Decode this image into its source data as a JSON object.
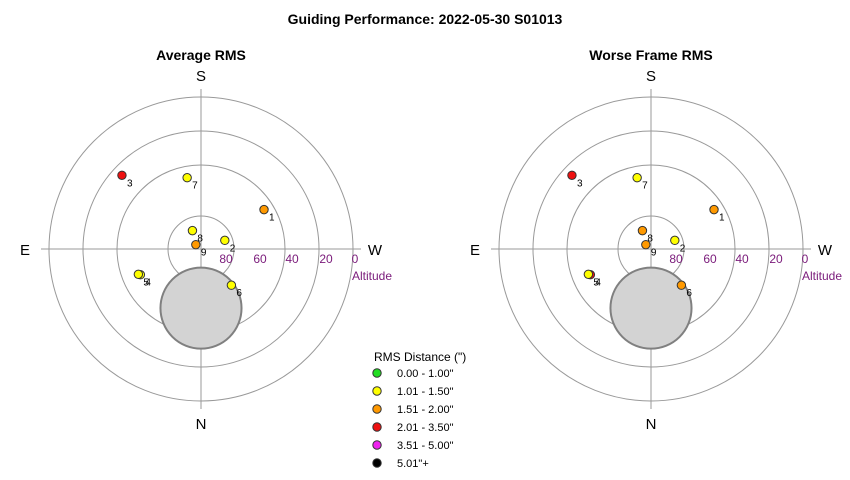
{
  "title": "Guiding Performance: 2022-05-30 S01013",
  "colors": {
    "0.00 - 1.00\"": "#22dd22",
    "1.01 - 1.50\"": "#ffff00",
    "1.51 - 2.00\"": "#ff9900",
    "2.01 - 3.50\"": "#ee1111",
    "3.51 - 5.00\"": "#ee22ee",
    "5.01\"+": "#000000"
  },
  "chart_data": [
    {
      "type": "scatter",
      "subtype": "polar-sky",
      "title": "Average RMS",
      "directions": {
        "top": "S",
        "bottom": "N",
        "left": "E",
        "right": "W"
      },
      "radial_ticks": [
        "80",
        "60",
        "40",
        "20",
        "0"
      ],
      "radial_label": "Altitude",
      "altitude_rings": [
        80,
        60,
        40,
        20,
        0
      ],
      "points": [
        {
          "label": "1",
          "az_deg": 58,
          "alt": 46,
          "bin": "1.51 - 2.00\""
        },
        {
          "label": "2",
          "az_deg": 70,
          "alt": 75,
          "bin": "1.01 - 1.50\""
        },
        {
          "label": "3",
          "az_deg": -47,
          "alt": 26,
          "bin": "2.01 - 3.50\""
        },
        {
          "label": "4",
          "az_deg": -113,
          "alt": 51,
          "bin": "1.01 - 1.50\""
        },
        {
          "label": "5",
          "az_deg": -112,
          "alt": 50,
          "bin": "1.01 - 1.50\""
        },
        {
          "label": "6",
          "az_deg": 140,
          "alt": 62,
          "bin": "1.01 - 1.50\""
        },
        {
          "label": "7",
          "az_deg": -11,
          "alt": 47,
          "bin": "1.01 - 1.50\""
        },
        {
          "label": "8",
          "az_deg": -25,
          "alt": 78,
          "bin": "1.01 - 1.50\""
        },
        {
          "label": "9",
          "az_deg": -50,
          "alt": 86,
          "bin": "1.51 - 2.00\""
        }
      ],
      "obstruction": {
        "az_deg": 180,
        "alt_center": 55,
        "alt_radius": 24
      }
    },
    {
      "type": "scatter",
      "subtype": "polar-sky",
      "title": "Worse Frame RMS",
      "directions": {
        "top": "S",
        "bottom": "N",
        "left": "E",
        "right": "W"
      },
      "radial_ticks": [
        "80",
        "60",
        "40",
        "20",
        "0"
      ],
      "radial_label": "Altitude",
      "altitude_rings": [
        80,
        60,
        40,
        20,
        0
      ],
      "points": [
        {
          "label": "1",
          "az_deg": 58,
          "alt": 46,
          "bin": "1.51 - 2.00\""
        },
        {
          "label": "2",
          "az_deg": 70,
          "alt": 75,
          "bin": "1.01 - 1.50\""
        },
        {
          "label": "3",
          "az_deg": -47,
          "alt": 26,
          "bin": "2.01 - 3.50\""
        },
        {
          "label": "4",
          "az_deg": -113,
          "alt": 51,
          "bin": "2.01 - 3.50\""
        },
        {
          "label": "5",
          "az_deg": -112,
          "alt": 50,
          "bin": "1.01 - 1.50\""
        },
        {
          "label": "6",
          "az_deg": 140,
          "alt": 62,
          "bin": "1.51 - 2.00\""
        },
        {
          "label": "7",
          "az_deg": -11,
          "alt": 47,
          "bin": "1.01 - 1.50\""
        },
        {
          "label": "8",
          "az_deg": -25,
          "alt": 78,
          "bin": "1.51 - 2.00\""
        },
        {
          "label": "9",
          "az_deg": -50,
          "alt": 86,
          "bin": "1.51 - 2.00\""
        }
      ],
      "obstruction": {
        "az_deg": 180,
        "alt_center": 55,
        "alt_radius": 24
      }
    }
  ],
  "legend": {
    "title": "RMS Distance (\")",
    "entries": [
      "0.00 - 1.00\"",
      "1.01 - 1.50\"",
      "1.51 - 2.00\"",
      "2.01 - 3.50\"",
      "3.51 - 5.00\"",
      "5.01\"+"
    ]
  }
}
